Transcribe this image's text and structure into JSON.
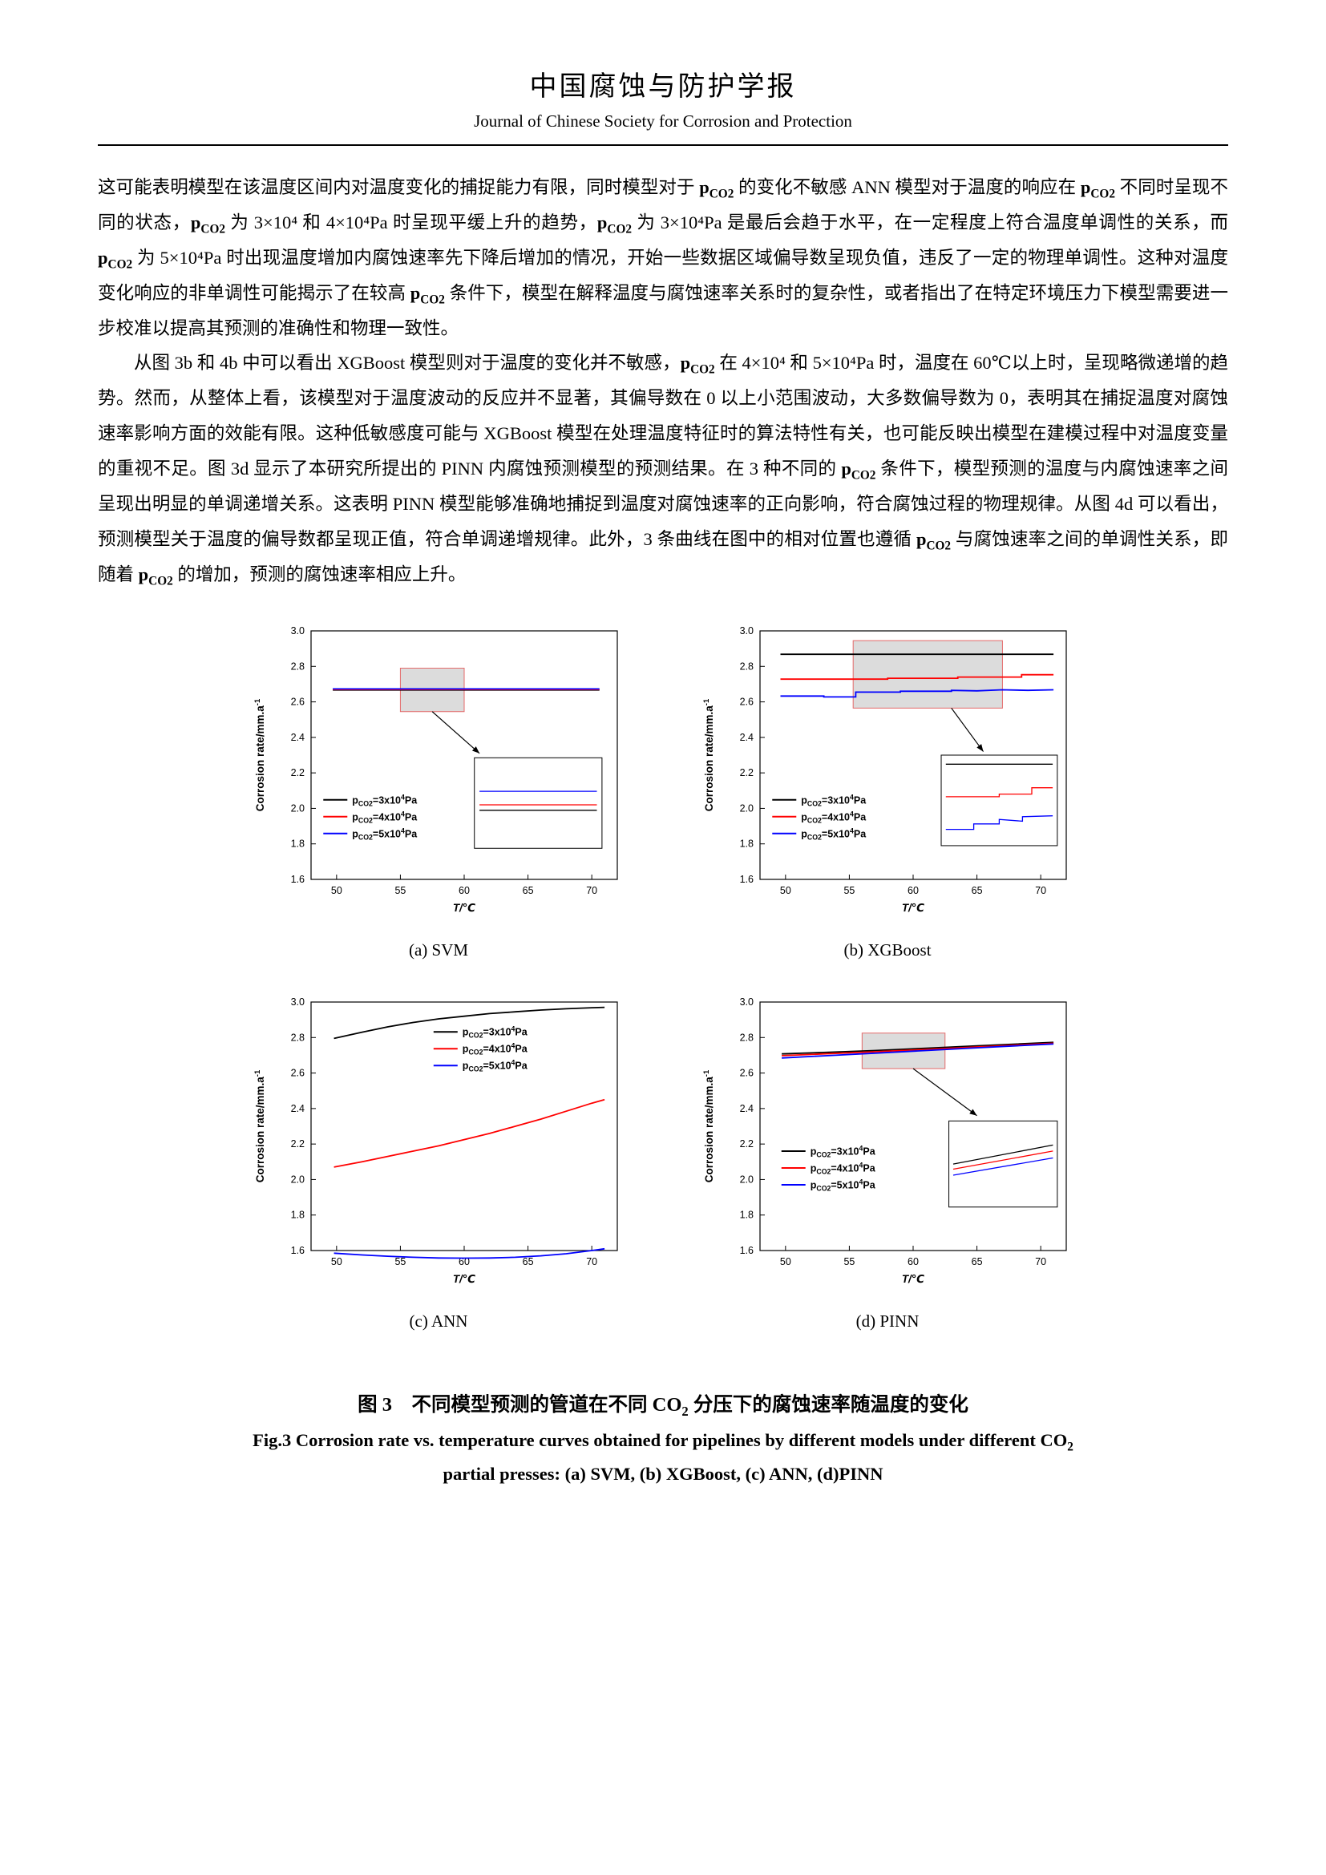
{
  "header": {
    "title_zh": "中国腐蚀与防护学报",
    "title_en": "Journal of Chinese Society for Corrosion and Protection"
  },
  "paragraphs": [
    {
      "runs": [
        {
          "t": "这可能表明模型在该温度区间内对温度变化的捕捉能力有限，同时模型对于 "
        },
        {
          "t": "p",
          "b": true
        },
        {
          "t": "CO2",
          "b": true,
          "sub": true
        },
        {
          "t": " 的变化不敏感 ANN 模型对于温度的响应在 "
        },
        {
          "t": "p",
          "b": true
        },
        {
          "t": "CO2",
          "b": true,
          "sub": true
        },
        {
          "t": " 不同时呈现不同的状态，"
        },
        {
          "t": "p",
          "b": true
        },
        {
          "t": "CO2",
          "b": true,
          "sub": true
        },
        {
          "t": " 为 3×10⁴ 和 4×10⁴Pa 时呈现平缓上升的趋势，"
        },
        {
          "t": "p",
          "b": true
        },
        {
          "t": "CO2",
          "b": true,
          "sub": true
        },
        {
          "t": " 为 3×10⁴Pa 是最后会趋于水平，在一定程度上符合温度单调性的关系，而 "
        },
        {
          "t": "p",
          "b": true
        },
        {
          "t": "CO2",
          "b": true,
          "sub": true
        },
        {
          "t": " 为 5×10⁴Pa 时出现温度增加内腐蚀速率先下降后增加的情况，开始一些数据区域偏导数呈现负值，违反了一定的物理单调性。这种对温度变化响应的非单调性可能揭示了在较高 "
        },
        {
          "t": "p",
          "b": true
        },
        {
          "t": "CO2",
          "b": true,
          "sub": true
        },
        {
          "t": " 条件下，模型在解释温度与腐蚀速率关系时的复杂性，或者指出了在特定环境压力下模型需要进一步校准以提高其预测的准确性和物理一致性。"
        }
      ]
    },
    {
      "runs": [
        {
          "t": "从图 3b 和 4b 中可以看出 XGBoost 模型则对于温度的变化并不敏感，"
        },
        {
          "t": "p",
          "b": true
        },
        {
          "t": "CO2",
          "b": true,
          "sub": true
        },
        {
          "t": " 在 4×10⁴ 和 5×10⁴Pa 时，温度在 60℃以上时，呈现略微递增的趋势。然而，从整体上看，该模型对于温度波动的反应并不显著，其偏导数在 0 以上小范围波动，大多数偏导数为 0，表明其在捕捉温度对腐蚀速率影响方面的效能有限。这种低敏感度可能与 XGBoost 模型在处理温度特征时的算法特性有关，也可能反映出模型在建模过程中对温度变量的重视不足。图 3d 显示了本研究所提出的 PINN 内腐蚀预测模型的预测结果。在 3 种不同的 "
        },
        {
          "t": "p",
          "b": true
        },
        {
          "t": "CO2",
          "b": true,
          "sub": true
        },
        {
          "t": " 条件下，模型预测的温度与内腐蚀速率之间呈现出明显的单调递增关系。这表明 PINN 模型能够准确地捕捉到温度对腐蚀速率的正向影响，符合腐蚀过程的物理规律。从图 4d 可以看出，预测模型关于温度的偏导数都呈现正值，符合单调递增规律。此外，3 条曲线在图中的相对位置也遵循 "
        },
        {
          "t": "p",
          "b": true
        },
        {
          "t": "CO2",
          "b": true,
          "sub": true
        },
        {
          "t": " 与腐蚀速率之间的单调性关系，即随着 "
        },
        {
          "t": "p",
          "b": true
        },
        {
          "t": "CO2",
          "b": true,
          "sub": true
        },
        {
          "t": " 的增加，预测的腐蚀速率相应上升。"
        }
      ]
    }
  ],
  "figure": {
    "caption_zh_runs": [
      {
        "t": "图 3　不同模型预测的管道在不同 CO",
        "b": true
      },
      {
        "t": "2",
        "b": true,
        "sub": true
      },
      {
        "t": " 分压下的腐蚀速率随温度的变化",
        "b": true
      }
    ],
    "caption_en_runs_1": [
      {
        "t": "Fig.3 Corrosion rate vs. temperature curves obtained for pipelines by different models under different CO",
        "b": true
      },
      {
        "t": "2",
        "b": true,
        "sub": true
      }
    ],
    "caption_en_runs_2": [
      {
        "t": "partial presses: (a) SVM, (b) XGBoost, (c) ANN, (d)PINN",
        "b": true
      }
    ]
  },
  "chart_data": [
    {
      "id": "svm",
      "type": "line",
      "sub_caption": "(a) SVM",
      "xlabel": "T/℃",
      "ylabel": "Corrosion rate/mm.a^{-1}",
      "xlim": [
        48,
        72
      ],
      "ylim": [
        1.6,
        3.0
      ],
      "xticks": [
        50,
        55,
        60,
        65,
        70
      ],
      "yticks": [
        1.6,
        1.8,
        2.0,
        2.2,
        2.4,
        2.6,
        2.8,
        3.0
      ],
      "legend": {
        "fx": 0.04,
        "fy": 0.68,
        "items": [
          {
            "label": "p_{CO2}=3x10^{4}Pa",
            "color": "#000000"
          },
          {
            "label": "p_{CO2}=4x10^{4}Pa",
            "color": "#ff0000"
          },
          {
            "label": "p_{CO2}=5x10^{4}Pa",
            "color": "#0000ff"
          }
        ]
      },
      "series": [
        {
          "name": "pCO2=3x10^4Pa",
          "color": "#000000",
          "points": [
            [
              49.7,
              2.667
            ],
            [
              70.6,
              2.667
            ]
          ]
        },
        {
          "name": "pCO2=4x10^4Pa",
          "color": "#ff0000",
          "points": [
            [
              49.7,
              2.67
            ],
            [
              70.6,
              2.67
            ]
          ]
        },
        {
          "name": "pCO2=5x10^4Pa",
          "color": "#0000ff",
          "points": [
            [
              49.7,
              2.673
            ],
            [
              70.6,
              2.673
            ]
          ]
        }
      ],
      "zoom_box": {
        "x0": 55,
        "x1": 60,
        "y0": 2.545,
        "y1": 2.79
      },
      "arrow": {
        "x1": 57.5,
        "y1": 2.545,
        "x2": 61.2,
        "y2": 2.31
      },
      "inset": {
        "x0": 60.8,
        "x1": 70.8,
        "y0": 1.775,
        "y1": 2.285,
        "lines": [
          {
            "color": "#0000ff",
            "pts": [
              [
                0.04,
                0.37
              ],
              [
                0.96,
                0.37
              ]
            ]
          },
          {
            "color": "#ff0000",
            "pts": [
              [
                0.04,
                0.52
              ],
              [
                0.96,
                0.52
              ]
            ]
          },
          {
            "color": "#000000",
            "pts": [
              [
                0.04,
                0.58
              ],
              [
                0.96,
                0.58
              ]
            ]
          }
        ]
      }
    },
    {
      "id": "xgboost",
      "type": "line",
      "sub_caption": "(b) XGBoost",
      "xlabel": "T/℃",
      "ylabel": "Corrosion rate/mm.a^{-1}",
      "xlim": [
        48,
        72
      ],
      "ylim": [
        1.6,
        3.0
      ],
      "xticks": [
        50,
        55,
        60,
        65,
        70
      ],
      "yticks": [
        1.6,
        1.8,
        2.0,
        2.2,
        2.4,
        2.6,
        2.8,
        3.0
      ],
      "legend": {
        "fx": 0.04,
        "fy": 0.68,
        "items": [
          {
            "label": "p_{CO2}=3x10^{4}Pa",
            "color": "#000000"
          },
          {
            "label": "p_{CO2}=4x10^{4}Pa",
            "color": "#ff0000"
          },
          {
            "label": "p_{CO2}=5x10^{4}Pa",
            "color": "#0000ff"
          }
        ]
      },
      "series": [
        {
          "name": "pCO2=3x10^4Pa",
          "color": "#000000",
          "points": [
            [
              49.6,
              2.868
            ],
            [
              71.0,
              2.868
            ]
          ]
        },
        {
          "name": "pCO2=4x10^4Pa",
          "color": "#ff0000",
          "points": [
            [
              49.6,
              2.728
            ],
            [
              58,
              2.728
            ],
            [
              58,
              2.733
            ],
            [
              63.5,
              2.733
            ],
            [
              63.5,
              2.74
            ],
            [
              68.5,
              2.74
            ],
            [
              68.5,
              2.753
            ],
            [
              71,
              2.753
            ]
          ]
        },
        {
          "name": "pCO2=5x10^4Pa",
          "color": "#0000ff",
          "points": [
            [
              49.6,
              2.633
            ],
            [
              53,
              2.633
            ],
            [
              53,
              2.628
            ],
            [
              55.5,
              2.628
            ],
            [
              55.5,
              2.655
            ],
            [
              59,
              2.655
            ],
            [
              59,
              2.66
            ],
            [
              63,
              2.66
            ],
            [
              63,
              2.665
            ],
            [
              65,
              2.662
            ],
            [
              67,
              2.668
            ],
            [
              69,
              2.665
            ],
            [
              71,
              2.668
            ]
          ]
        }
      ],
      "zoom_box": {
        "x0": 55.3,
        "x1": 67,
        "y0": 2.565,
        "y1": 2.945
      },
      "arrow": {
        "x1": 63,
        "y1": 2.565,
        "x2": 65.5,
        "y2": 2.32
      },
      "inset": {
        "x0": 62.2,
        "x1": 71.3,
        "y0": 1.79,
        "y1": 2.3,
        "lines": [
          {
            "color": "#000000",
            "pts": [
              [
                0.04,
                0.1
              ],
              [
                0.96,
                0.1
              ]
            ]
          },
          {
            "color": "#ff0000",
            "pts": [
              [
                0.04,
                0.46
              ],
              [
                0.5,
                0.46
              ],
              [
                0.5,
                0.43
              ],
              [
                0.78,
                0.43
              ],
              [
                0.78,
                0.36
              ],
              [
                0.96,
                0.36
              ]
            ]
          },
          {
            "color": "#0000ff",
            "pts": [
              [
                0.04,
                0.82
              ],
              [
                0.28,
                0.82
              ],
              [
                0.28,
                0.76
              ],
              [
                0.5,
                0.76
              ],
              [
                0.5,
                0.71
              ],
              [
                0.7,
                0.73
              ],
              [
                0.7,
                0.68
              ],
              [
                0.96,
                0.67
              ]
            ]
          }
        ]
      }
    },
    {
      "id": "ann",
      "type": "line",
      "sub_caption": "(c) ANN",
      "xlabel": "T/℃",
      "ylabel": "Corrosion rate/mm.a^{-1}",
      "xlim": [
        48,
        72
      ],
      "ylim": [
        1.6,
        3.0
      ],
      "xticks": [
        50,
        55,
        60,
        65,
        70
      ],
      "yticks": [
        1.6,
        1.8,
        2.0,
        2.2,
        2.4,
        2.6,
        2.8,
        3.0
      ],
      "legend": {
        "fx": 0.4,
        "fy": 0.12,
        "items": [
          {
            "label": "p_{CO2}=3x10^{4}Pa",
            "color": "#000000"
          },
          {
            "label": "p_{CO2}=4x10^{4}Pa",
            "color": "#ff0000"
          },
          {
            "label": "p_{CO2}=5x10^{4}Pa",
            "color": "#0000ff"
          }
        ]
      },
      "series": [
        {
          "name": "pCO2=3x10^4Pa",
          "color": "#000000",
          "points": [
            [
              49.8,
              2.795
            ],
            [
              52,
              2.83
            ],
            [
              54,
              2.86
            ],
            [
              56,
              2.885
            ],
            [
              58,
              2.905
            ],
            [
              60,
              2.92
            ],
            [
              62,
              2.935
            ],
            [
              64,
              2.945
            ],
            [
              66,
              2.955
            ],
            [
              68,
              2.962
            ],
            [
              70,
              2.968
            ],
            [
              71,
              2.97
            ]
          ]
        },
        {
          "name": "pCO2=4x10^4Pa",
          "color": "#ff0000",
          "points": [
            [
              49.8,
              2.07
            ],
            [
              52,
              2.1
            ],
            [
              54,
              2.13
            ],
            [
              56,
              2.16
            ],
            [
              58,
              2.19
            ],
            [
              60,
              2.225
            ],
            [
              62,
              2.26
            ],
            [
              64,
              2.3
            ],
            [
              66,
              2.34
            ],
            [
              68,
              2.385
            ],
            [
              70,
              2.43
            ],
            [
              71,
              2.45
            ]
          ]
        },
        {
          "name": "pCO2=5x10^4Pa",
          "color": "#0000ff",
          "points": [
            [
              49.8,
              1.585
            ],
            [
              52,
              1.575
            ],
            [
              54,
              1.568
            ],
            [
              56,
              1.562
            ],
            [
              58,
              1.558
            ],
            [
              60,
              1.557
            ],
            [
              62,
              1.558
            ],
            [
              64,
              1.562
            ],
            [
              66,
              1.57
            ],
            [
              68,
              1.582
            ],
            [
              70,
              1.6
            ],
            [
              71,
              1.61
            ]
          ]
        }
      ]
    },
    {
      "id": "pinn",
      "type": "line",
      "sub_caption": "(d) PINN",
      "xlabel": "T/℃",
      "ylabel": "Corrosion rate/mm.a^{-1}",
      "xlim": [
        48,
        72
      ],
      "ylim": [
        1.6,
        3.0
      ],
      "xticks": [
        50,
        55,
        60,
        65,
        70
      ],
      "yticks": [
        1.6,
        1.8,
        2.0,
        2.2,
        2.4,
        2.6,
        2.8,
        3.0
      ],
      "legend": {
        "fx": 0.07,
        "fy": 0.6,
        "items": [
          {
            "label": "p_{CO2}=3x10^{4}Pa",
            "color": "#000000"
          },
          {
            "label": "p_{CO2}=4x10^{4}Pa",
            "color": "#ff0000"
          },
          {
            "label": "p_{CO2}=5x10^{4}Pa",
            "color": "#0000ff"
          }
        ]
      },
      "series": [
        {
          "name": "pCO2=3x10^4Pa",
          "color": "#000000",
          "points": [
            [
              49.7,
              2.708
            ],
            [
              53,
              2.716
            ],
            [
              57,
              2.727
            ],
            [
              61,
              2.74
            ],
            [
              65,
              2.753
            ],
            [
              68,
              2.763
            ],
            [
              71,
              2.773
            ]
          ]
        },
        {
          "name": "pCO2=4x10^4Pa",
          "color": "#ff0000",
          "points": [
            [
              49.7,
              2.698
            ],
            [
              53,
              2.708
            ],
            [
              57,
              2.72
            ],
            [
              61,
              2.733
            ],
            [
              65,
              2.747
            ],
            [
              68,
              2.757
            ],
            [
              71,
              2.768
            ]
          ]
        },
        {
          "name": "pCO2=5x10^4Pa",
          "color": "#0000ff",
          "points": [
            [
              49.7,
              2.685
            ],
            [
              53,
              2.697
            ],
            [
              57,
              2.712
            ],
            [
              61,
              2.727
            ],
            [
              65,
              2.742
            ],
            [
              68,
              2.753
            ],
            [
              71,
              2.764
            ]
          ]
        }
      ],
      "zoom_box": {
        "x0": 56,
        "x1": 62.5,
        "y0": 2.625,
        "y1": 2.825
      },
      "arrow": {
        "x1": 60,
        "y1": 2.625,
        "x2": 65,
        "y2": 2.36
      },
      "inset": {
        "x0": 62.8,
        "x1": 71.3,
        "y0": 1.845,
        "y1": 2.33,
        "lines": [
          {
            "color": "#000000",
            "pts": [
              [
                0.04,
                0.5
              ],
              [
                0.96,
                0.28
              ]
            ]
          },
          {
            "color": "#ff0000",
            "pts": [
              [
                0.04,
                0.56
              ],
              [
                0.96,
                0.35
              ]
            ]
          },
          {
            "color": "#0000ff",
            "pts": [
              [
                0.04,
                0.63
              ],
              [
                0.96,
                0.43
              ]
            ]
          }
        ]
      }
    }
  ]
}
